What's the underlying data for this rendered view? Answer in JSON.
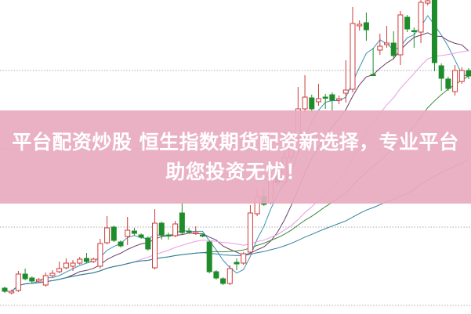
{
  "banner": {
    "line1": "平台配资炒股 恒生指数期货配资新选择，专业平台",
    "line2": "助您投资无忧！"
  },
  "chart_data": {
    "type": "candlestick",
    "title": "",
    "xlabel": "",
    "ylabel": "",
    "grid": true,
    "grid_style": "dotted-horizontal",
    "up_color": "#d03a3a",
    "down_color": "#1e8c2a",
    "moving_averages": [
      {
        "period": 5,
        "color": "#3a93b5"
      },
      {
        "period": 10,
        "color": "#6a3d6a"
      },
      {
        "period": 20,
        "color": "#e79be6"
      },
      {
        "period": 30,
        "color": "#3d8a3d"
      },
      {
        "period": 60,
        "color": "#2f7fa0"
      }
    ],
    "ohlc": [
      [
        33,
        35,
        27,
        29
      ],
      [
        27,
        31,
        25,
        29
      ],
      [
        30,
        55,
        28,
        51
      ],
      [
        51,
        58,
        43,
        45
      ],
      [
        46,
        48,
        40,
        42
      ],
      [
        42,
        46,
        40,
        44
      ],
      [
        37,
        53,
        35,
        49
      ],
      [
        49,
        56,
        47,
        52
      ],
      [
        54,
        67,
        52,
        58
      ],
      [
        59,
        71,
        57,
        65
      ],
      [
        61,
        69,
        55,
        65
      ],
      [
        65,
        73,
        63,
        70
      ],
      [
        71,
        78,
        65,
        67
      ],
      [
        67,
        72,
        65,
        70
      ],
      [
        61,
        96,
        58,
        90
      ],
      [
        91,
        125,
        89,
        110
      ],
      [
        111,
        113,
        92,
        94
      ],
      [
        92,
        94,
        85,
        87
      ],
      [
        99,
        124,
        88,
        107
      ],
      [
        106,
        110,
        100,
        103
      ],
      [
        101,
        103,
        96,
        98
      ],
      [
        97,
        99,
        81,
        83
      ],
      [
        59,
        134,
        57,
        116
      ],
      [
        116,
        118,
        95,
        101
      ],
      [
        101,
        104,
        95,
        100
      ],
      [
        100,
        119,
        98,
        115
      ],
      [
        129,
        141,
        102,
        104
      ],
      [
        106,
        110,
        103,
        105
      ],
      [
        103,
        112,
        101,
        104
      ],
      [
        101,
        103,
        98,
        100
      ],
      [
        92,
        94,
        52,
        54
      ],
      [
        54,
        56,
        44,
        46
      ],
      [
        45,
        47,
        37,
        39
      ],
      [
        39,
        62,
        37,
        58
      ],
      [
        66,
        71,
        56,
        64
      ],
      [
        65,
        79,
        63,
        77
      ],
      [
        79,
        139,
        77,
        129
      ],
      [
        128,
        160,
        125,
        150
      ],
      [
        150,
        160,
        138,
        140
      ],
      [
        142,
        185,
        140,
        175
      ],
      [
        175,
        182,
        165,
        168
      ],
      [
        168,
        210,
        165,
        200
      ],
      [
        200,
        235,
        195,
        225
      ],
      [
        225,
        290,
        220,
        262
      ],
      [
        262,
        305,
        258,
        277
      ],
      [
        276,
        280,
        258,
        262
      ],
      [
        271,
        294,
        266,
        275
      ],
      [
        277,
        281,
        262,
        276
      ],
      [
        280,
        283,
        260,
        273
      ],
      [
        273,
        279,
        268,
        275
      ],
      [
        282,
        324,
        270,
        286
      ],
      [
        287,
        392,
        283,
        371
      ],
      [
        368,
        375,
        362,
        370
      ],
      [
        372,
        385,
        349,
        363
      ],
      [
        306,
        340,
        304,
        305
      ],
      [
        337,
        358,
        331,
        342
      ],
      [
        344,
        368,
        340,
        346
      ],
      [
        346,
        361,
        325,
        330
      ],
      [
        331,
        387,
        318,
        382
      ],
      [
        379,
        382,
        360,
        364
      ],
      [
        362,
        366,
        340,
        361
      ],
      [
        360,
        401,
        346,
        398
      ],
      [
        397,
        401,
        394,
        400
      ],
      [
        401,
        401,
        310,
        321
      ],
      [
        317,
        320,
        285,
        301
      ],
      [
        300,
        303,
        285,
        288
      ],
      [
        284,
        318,
        279,
        311
      ],
      [
        297,
        315,
        294,
        311
      ],
      [
        311,
        314,
        300,
        304
      ]
    ]
  }
}
